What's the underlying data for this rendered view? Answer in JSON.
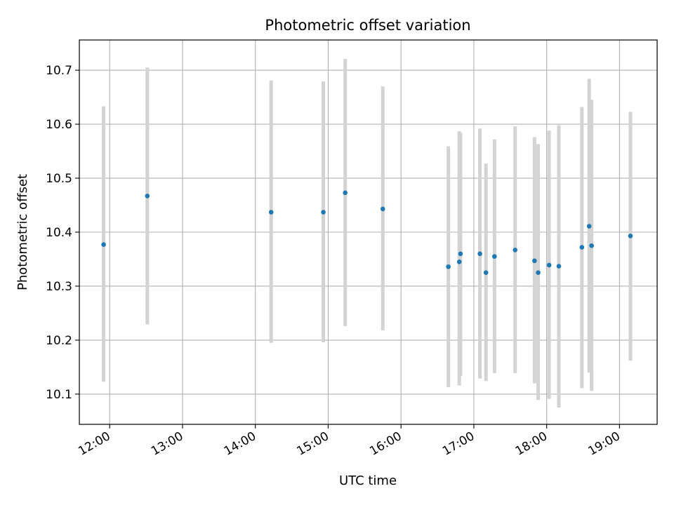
{
  "chart_data": {
    "type": "scatter",
    "title": "Photometric offset variation",
    "xlabel": "UTC time",
    "ylabel": "Photometric offset",
    "x_tick_labels": [
      "12:00",
      "13:00",
      "14:00",
      "15:00",
      "16:00",
      "17:00",
      "18:00",
      "19:00"
    ],
    "y_tick_labels": [
      "10.1",
      "10.2",
      "10.3",
      "10.4",
      "10.5",
      "10.6",
      "10.7"
    ],
    "xlim": [
      "11:35",
      "19:31"
    ],
    "ylim": [
      10.044,
      10.756
    ],
    "grid": true,
    "marker_color": "#1f77b4",
    "errorbar_color": "#d3d3d3",
    "points": [
      {
        "time": "11:55",
        "y": 10.377,
        "low": 10.123,
        "high": 10.633
      },
      {
        "time": "12:31",
        "y": 10.467,
        "low": 10.229,
        "high": 10.705
      },
      {
        "time": "14:13",
        "y": 10.437,
        "low": 10.195,
        "high": 10.681
      },
      {
        "time": "14:56",
        "y": 10.437,
        "low": 10.196,
        "high": 10.679
      },
      {
        "time": "15:14",
        "y": 10.473,
        "low": 10.226,
        "high": 10.721
      },
      {
        "time": "15:45",
        "y": 10.443,
        "low": 10.218,
        "high": 10.67
      },
      {
        "time": "16:39",
        "y": 10.336,
        "low": 10.113,
        "high": 10.559
      },
      {
        "time": "16:48",
        "y": 10.345,
        "low": 10.116,
        "high": 10.587
      },
      {
        "time": "16:49",
        "y": 10.36,
        "low": 10.134,
        "high": 10.584
      },
      {
        "time": "17:05",
        "y": 10.36,
        "low": 10.129,
        "high": 10.592
      },
      {
        "time": "17:10",
        "y": 10.325,
        "low": 10.124,
        "high": 10.527
      },
      {
        "time": "17:17",
        "y": 10.355,
        "low": 10.139,
        "high": 10.572
      },
      {
        "time": "17:34",
        "y": 10.367,
        "low": 10.139,
        "high": 10.596
      },
      {
        "time": "17:50",
        "y": 10.347,
        "low": 10.12,
        "high": 10.576
      },
      {
        "time": "17:53",
        "y": 10.325,
        "low": 10.089,
        "high": 10.563
      },
      {
        "time": "18:02",
        "y": 10.339,
        "low": 10.091,
        "high": 10.588
      },
      {
        "time": "18:10",
        "y": 10.337,
        "low": 10.075,
        "high": 10.598
      },
      {
        "time": "18:29",
        "y": 10.372,
        "low": 10.111,
        "high": 10.632
      },
      {
        "time": "18:35",
        "y": 10.411,
        "low": 10.14,
        "high": 10.684
      },
      {
        "time": "18:37",
        "y": 10.375,
        "low": 10.106,
        "high": 10.645
      },
      {
        "time": "19:09",
        "y": 10.393,
        "low": 10.162,
        "high": 10.623
      }
    ]
  }
}
